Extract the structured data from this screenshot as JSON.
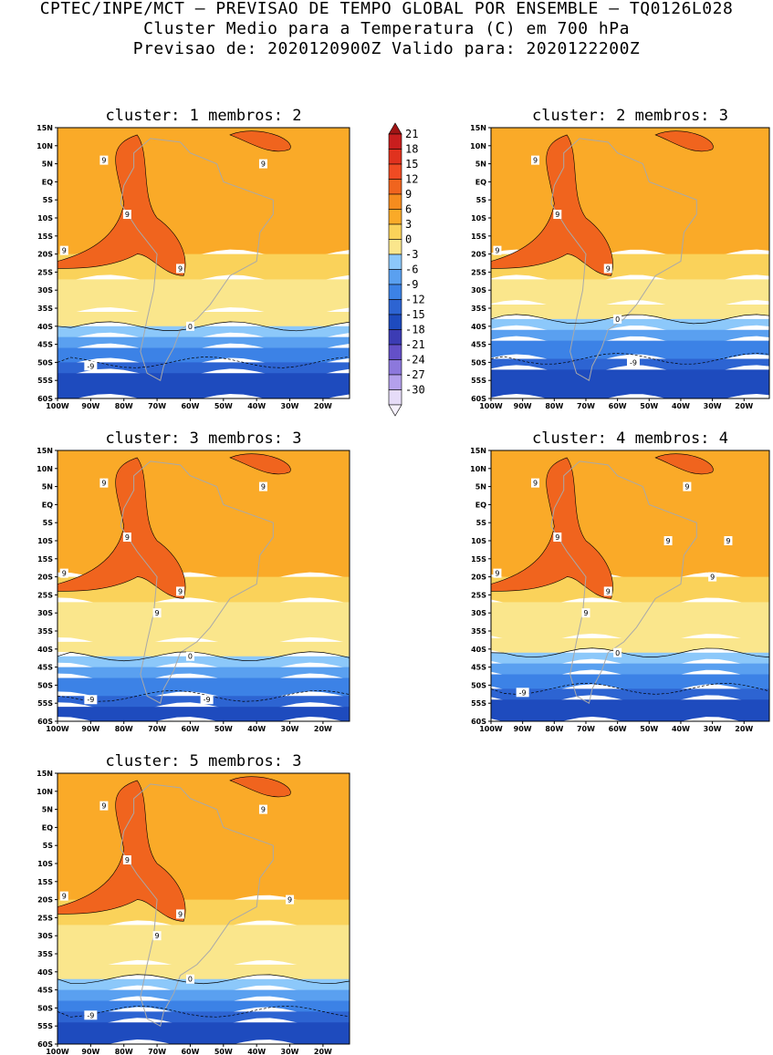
{
  "header": {
    "line1": "CPTEC/INPE/MCT — PREVISAO DE TEMPO GLOBAL POR ENSEMBLE — TQ0126L028",
    "line2": "Cluster Medio para a Temperatura (C) em 700 hPa",
    "line3": "Previsao de: 2020120900Z   Valido para: 2020122200Z"
  },
  "chart_data": {
    "type": "heatmap",
    "variable": "Temperatura (C) em 700 hPa",
    "lat_ticks": [
      "15N",
      "10N",
      "5N",
      "EQ",
      "5S",
      "10S",
      "15S",
      "20S",
      "25S",
      "30S",
      "35S",
      "40S",
      "45S",
      "50S",
      "55S",
      "60S"
    ],
    "lon_ticks": [
      "100W",
      "90W",
      "80W",
      "70W",
      "60W",
      "50W",
      "40W",
      "30W",
      "20W"
    ],
    "colorbar": {
      "levels": [
        21,
        18,
        15,
        12,
        9,
        6,
        3,
        0,
        -3,
        -6,
        -9,
        -12,
        -15,
        -18,
        -21,
        -24,
        -27,
        -30
      ],
      "colors": [
        "#c81e1e",
        "#e0321e",
        "#f04b23",
        "#f0641e",
        "#f58c1e",
        "#faaa28",
        "#fad25a",
        "#fae68c",
        "#8cc8fa",
        "#5aa0f0",
        "#3c82e6",
        "#2d64d2",
        "#1e4bbe",
        "#3c3cb4",
        "#6450c8",
        "#8c78dc",
        "#b4a0ec",
        "#e6dcf8"
      ],
      "top_color": "#a01414",
      "bottom_color": "#f5f0fc"
    },
    "panels": [
      {
        "cluster_label": "cluster:",
        "cluster": "1",
        "members_label": "membros:",
        "members": "2",
        "contour_labels": [
          "9",
          "9",
          "9",
          "9",
          "9",
          "0",
          "-9"
        ],
        "freezing_lat": -40,
        "minus9_lat": -50
      },
      {
        "cluster_label": "cluster:",
        "cluster": "2",
        "members_label": "membros:",
        "members": "3",
        "contour_labels": [
          "9",
          "9",
          "9",
          "9",
          "0",
          "-9"
        ],
        "freezing_lat": -38,
        "minus9_lat": -49
      },
      {
        "cluster_label": "cluster:",
        "cluster": "3",
        "members_label": "membros:",
        "members": "3",
        "contour_labels": [
          "9",
          "9",
          "9",
          "9",
          "9",
          "9",
          "0",
          "-9",
          "-9"
        ],
        "freezing_lat": -42,
        "minus9_lat": -53
      },
      {
        "cluster_label": "cluster:",
        "cluster": "4",
        "members_label": "membros:",
        "members": "4",
        "contour_labels": [
          "9",
          "9",
          "9",
          "9",
          "9",
          "9",
          "9",
          "9",
          "9",
          "0",
          "-9"
        ],
        "freezing_lat": -41,
        "minus9_lat": -51
      },
      {
        "cluster_label": "cluster:",
        "cluster": "5",
        "members_label": "membros:",
        "members": "3",
        "contour_labels": [
          "9",
          "9",
          "9",
          "9",
          "9",
          "9",
          "9",
          "0",
          "-9"
        ],
        "freezing_lat": -42,
        "minus9_lat": -51
      }
    ]
  }
}
